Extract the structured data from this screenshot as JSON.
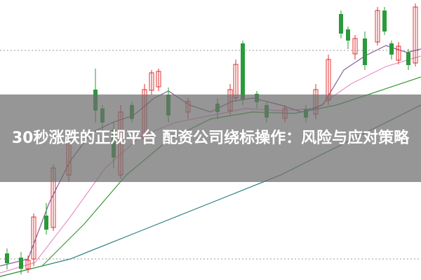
{
  "banner": {
    "title": "30秒涨跌的正规平台 配资公司绕标操作：风险与应对策略"
  }
}
